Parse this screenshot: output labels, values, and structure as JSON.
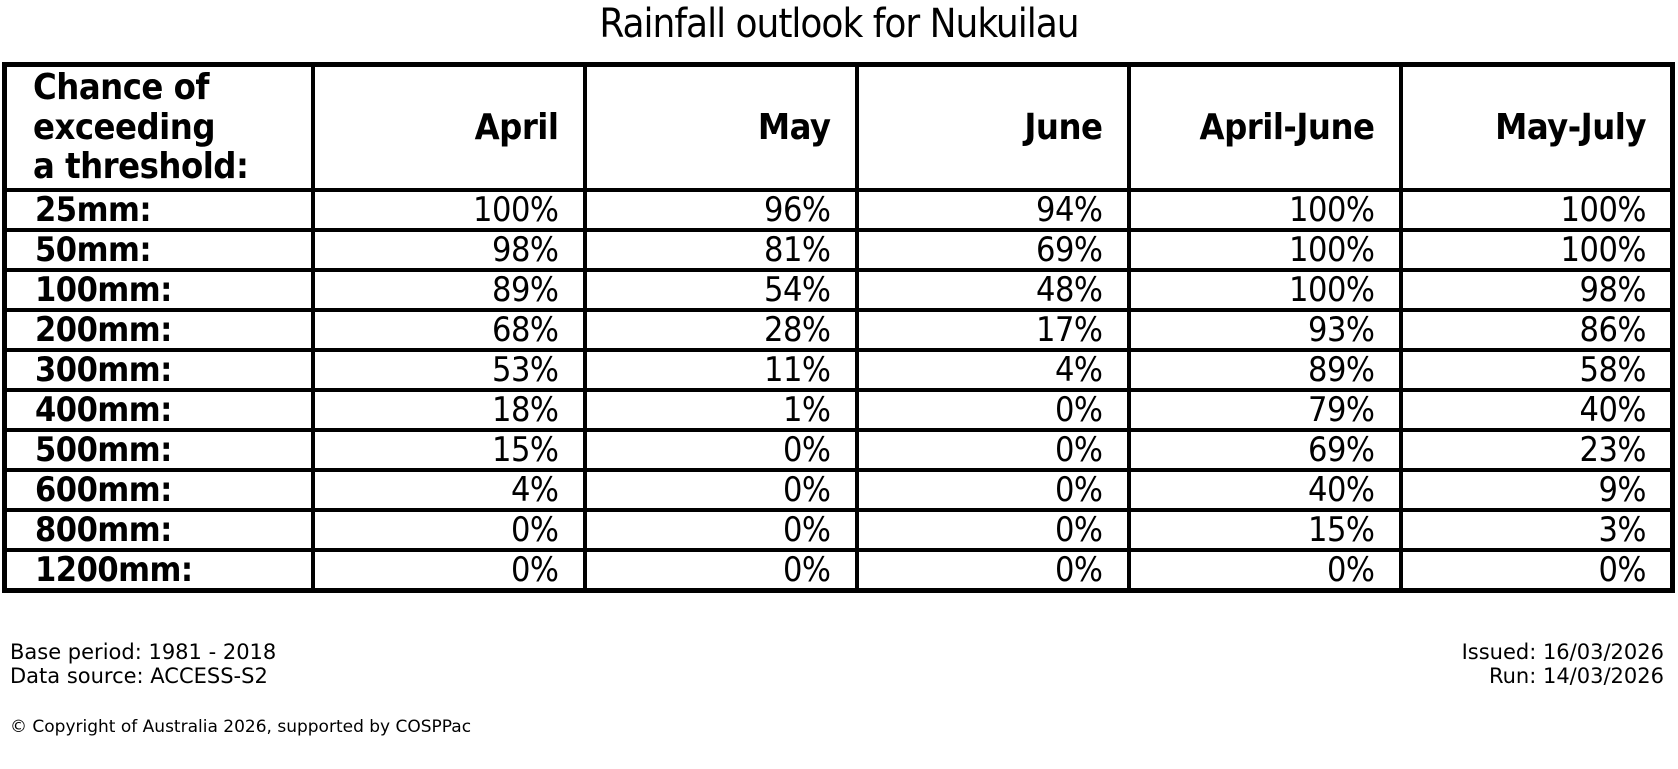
{
  "title": "Rainfall outlook for Nukuilau",
  "table": {
    "corner_header": "Chance of\nexceeding\na threshold:",
    "columns": [
      "April",
      "May",
      "June",
      "April-June",
      "May-July"
    ],
    "rows": [
      {
        "label": "25mm:",
        "values": [
          "100%",
          "96%",
          "94%",
          "100%",
          "100%"
        ]
      },
      {
        "label": "50mm:",
        "values": [
          "98%",
          "81%",
          "69%",
          "100%",
          "100%"
        ]
      },
      {
        "label": "100mm:",
        "values": [
          "89%",
          "54%",
          "48%",
          "100%",
          "98%"
        ]
      },
      {
        "label": "200mm:",
        "values": [
          "68%",
          "28%",
          "17%",
          "93%",
          "86%"
        ]
      },
      {
        "label": "300mm:",
        "values": [
          "53%",
          "11%",
          "4%",
          "89%",
          "58%"
        ]
      },
      {
        "label": "400mm:",
        "values": [
          "18%",
          "1%",
          "0%",
          "79%",
          "40%"
        ]
      },
      {
        "label": "500mm:",
        "values": [
          "15%",
          "0%",
          "0%",
          "69%",
          "23%"
        ]
      },
      {
        "label": "600mm:",
        "values": [
          "4%",
          "0%",
          "0%",
          "40%",
          "9%"
        ]
      },
      {
        "label": "800mm:",
        "values": [
          "0%",
          "0%",
          "0%",
          "15%",
          "3%"
        ]
      },
      {
        "label": "1200mm:",
        "values": [
          "0%",
          "0%",
          "0%",
          "0%",
          "0%"
        ]
      }
    ]
  },
  "footer": {
    "base_period": "Base period: 1981 - 2018",
    "data_source": "Data source: ACCESS-S2",
    "issued": "Issued: 16/03/2026",
    "run": "Run: 14/03/2026",
    "copyright": "© Copyright of Australia 2026, supported by COSPPac"
  },
  "colors": {
    "text": "#000000",
    "background": "#ffffff",
    "table_border": "#000000"
  },
  "chart_data": {
    "type": "table",
    "title": "Rainfall outlook for Nukuilau",
    "row_header": "Chance of exceeding a threshold:",
    "columns": [
      "April",
      "May",
      "June",
      "April-June",
      "May-July"
    ],
    "thresholds_mm": [
      25,
      50,
      100,
      200,
      300,
      400,
      500,
      600,
      800,
      1200
    ],
    "values_percent": [
      [
        100,
        96,
        94,
        100,
        100
      ],
      [
        98,
        81,
        69,
        100,
        100
      ],
      [
        89,
        54,
        48,
        100,
        98
      ],
      [
        68,
        28,
        17,
        93,
        86
      ],
      [
        53,
        11,
        4,
        89,
        58
      ],
      [
        18,
        1,
        0,
        79,
        40
      ],
      [
        15,
        0,
        0,
        69,
        23
      ],
      [
        4,
        0,
        0,
        40,
        9
      ],
      [
        0,
        0,
        0,
        15,
        3
      ],
      [
        0,
        0,
        0,
        0,
        0
      ]
    ],
    "base_period": "1981 - 2018",
    "data_source": "ACCESS-S2",
    "issued": "16/03/2026",
    "run": "14/03/2026"
  }
}
